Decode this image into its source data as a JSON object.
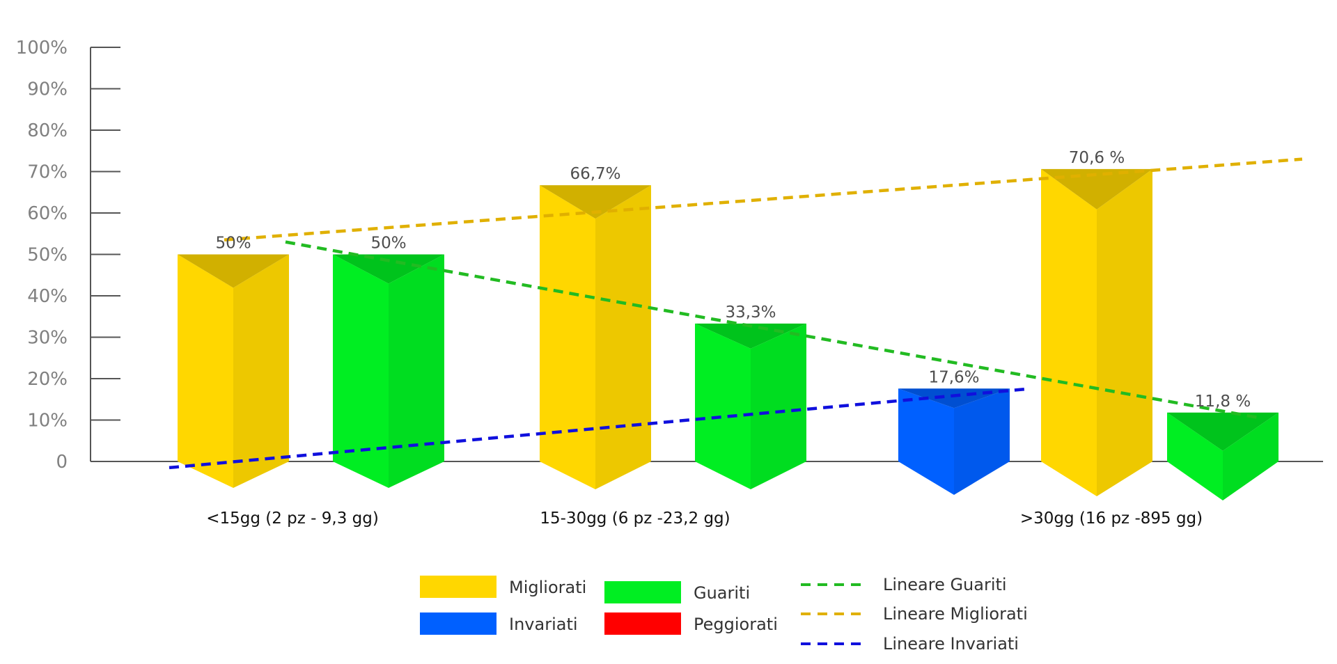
{
  "chart_data": {
    "type": "bar",
    "y_tick_labels": [
      "0",
      "10%",
      "20%",
      "30%",
      "40%",
      "50%",
      "60%",
      "70%",
      "80%",
      "90%",
      "100%"
    ],
    "ylim": [
      0,
      100
    ],
    "grid": false,
    "legend_position": "bottom",
    "categories": [
      "<15gg (2 pz - 9,3 gg)",
      "15-30gg (6 pz -23,2 gg)",
      ">30gg (16 pz -895 gg)"
    ],
    "series": [
      {
        "name": "Migliorati",
        "color": "#FFD700",
        "values": [
          50,
          66.7,
          70.6
        ],
        "labels": [
          "50%",
          "66,7%",
          "70,6 %"
        ]
      },
      {
        "name": "Invariati",
        "color": "#0060FF",
        "values": [
          null,
          null,
          17.6
        ],
        "labels": [
          "",
          "",
          "17,6%"
        ]
      },
      {
        "name": "Guariti",
        "color": "#00EE22",
        "values": [
          50,
          33.3,
          11.8
        ],
        "labels": [
          "50%",
          "33,3%",
          "11,8 %"
        ]
      },
      {
        "name": "Peggiorati",
        "color": "#FF0000",
        "values": [
          null,
          null,
          null
        ],
        "labels": [
          "",
          "",
          ""
        ]
      }
    ],
    "trendlines": [
      {
        "name": "Lineare Guariti",
        "color": "#22BB22",
        "start": 53,
        "end": 10.5
      },
      {
        "name": "Lineare Migliorati",
        "color": "#E0B000",
        "start": 53.5,
        "end": 73
      },
      {
        "name": "Lineare Invariati",
        "color": "#1010DD",
        "start": -1.5,
        "end": 17.5
      }
    ]
  }
}
